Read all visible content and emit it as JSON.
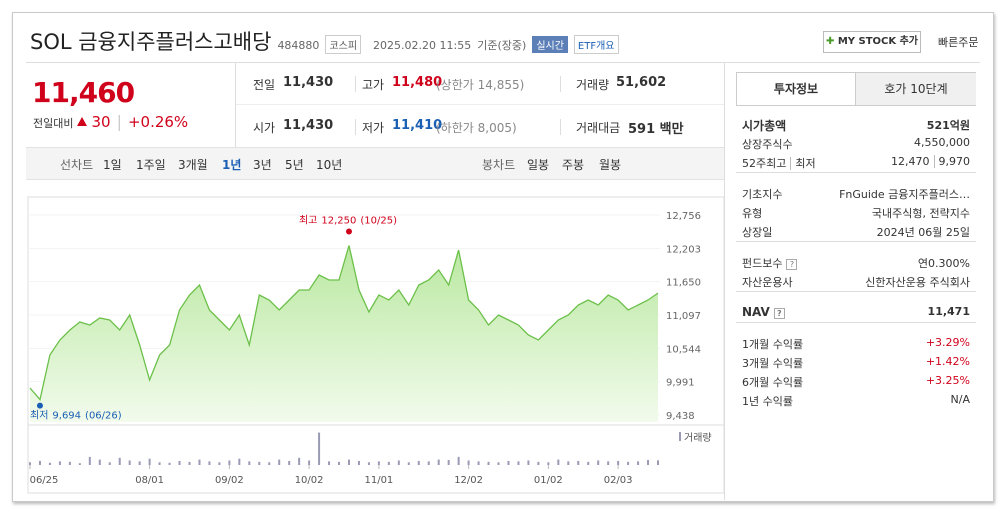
{
  "header": {
    "title": "SOL 금융지주플러스고배당",
    "code": "484880",
    "market": "코스피",
    "timestamp": "2025.02.20 11:55",
    "status": "기준(장중)",
    "realtime": "실시간",
    "etf_overview": "ETF개요",
    "my_stock": "MY STOCK 추가",
    "quick_order": "빠른주문"
  },
  "quote": {
    "price": "11,460",
    "change_label": "전일대비",
    "change": "30",
    "change_pct": "+0.26%"
  },
  "stats": {
    "rows": [
      [
        {
          "label": "전일",
          "value": "11,430"
        },
        {
          "label": "고가",
          "value": "11,480",
          "limit": "(상한가 14,855)"
        },
        {
          "label": "거래량",
          "value": "51,602"
        }
      ],
      [
        {
          "label": "시가",
          "value": "11,430"
        },
        {
          "label": "저가",
          "value": "11,410",
          "limit": "(하한가 8,005)"
        },
        {
          "label": "거래대금",
          "value": "591 백만"
        }
      ]
    ]
  },
  "chart_tabs": {
    "line_label": "선차트",
    "periods": [
      "1일",
      "1주일",
      "3개월",
      "1년",
      "3년",
      "5년",
      "10년"
    ],
    "selected_period": 3,
    "candle_label": "봉차트",
    "candles": [
      "일봉",
      "주봉",
      "월봉"
    ]
  },
  "chart_data": {
    "type": "line",
    "color": "#6cc04a",
    "categories": [
      "06/25",
      null,
      null,
      null,
      null,
      null,
      null,
      null,
      null,
      null,
      null,
      null,
      "08/01",
      null,
      null,
      null,
      null,
      null,
      null,
      null,
      "09/02",
      null,
      null,
      null,
      null,
      null,
      null,
      null,
      "10/02",
      null,
      null,
      null,
      null,
      null,
      null,
      "11/01",
      null,
      null,
      null,
      null,
      null,
      null,
      null,
      null,
      "12/02",
      null,
      null,
      null,
      null,
      null,
      null,
      null,
      "01/02",
      null,
      null,
      null,
      null,
      null,
      null,
      "02/03",
      null,
      null,
      null,
      null
    ],
    "values": [
      9886,
      9694,
      10433,
      10682,
      10848,
      10981,
      10931,
      11047,
      11014,
      10848,
      11097,
      10599,
      10019,
      10433,
      10599,
      11180,
      11429,
      11595,
      11180,
      11014,
      10848,
      11097,
      10599,
      11429,
      11346,
      11180,
      11346,
      11512,
      11512,
      11761,
      11678,
      11678,
      12250,
      11512,
      11147,
      11429,
      11346,
      11512,
      11263,
      11595,
      11678,
      11844,
      11595,
      12175,
      11346,
      11180,
      10931,
      11097,
      11014,
      10931,
      10765,
      10682,
      10848,
      11014,
      11097,
      11263,
      11346,
      11263,
      11429,
      11346,
      11180,
      11263,
      11346,
      11460
    ],
    "ylim": [
      9438,
      12756
    ],
    "yticks": [
      {
        "value": 9438,
        "label": "9,438"
      },
      {
        "value": 9991,
        "label": "9,991"
      },
      {
        "value": 10544,
        "label": "10,544"
      },
      {
        "value": 11097,
        "label": "11,097"
      },
      {
        "value": 11650,
        "label": "11,650"
      },
      {
        "value": 12203,
        "label": "12,203"
      },
      {
        "value": 12756,
        "label": "12,756"
      }
    ],
    "max": {
      "label": "최고",
      "value": 12250,
      "value_label": "12,250",
      "date": "(10/25)",
      "color": "#d0021b"
    },
    "min": {
      "label": "최저",
      "value": 9694,
      "value_label": "9,694",
      "date": "(06/26)",
      "color": "#1a5fb4"
    },
    "volume": {
      "type": "bar",
      "name": "거래량",
      "color": "#9a9ab5",
      "ylim": [
        0,
        400000
      ],
      "values": [
        30000,
        45000,
        25000,
        40000,
        35000,
        20000,
        90000,
        60000,
        30000,
        80000,
        50000,
        40000,
        70000,
        30000,
        25000,
        45000,
        35000,
        60000,
        40000,
        30000,
        50000,
        70000,
        40000,
        35000,
        30000,
        60000,
        45000,
        80000,
        50000,
        360000,
        40000,
        35000,
        60000,
        45000,
        30000,
        40000,
        35000,
        50000,
        30000,
        45000,
        40000,
        60000,
        55000,
        90000,
        50000,
        40000,
        35000,
        30000,
        45000,
        40000,
        50000,
        35000,
        30000,
        60000,
        40000,
        45000,
        35000,
        50000,
        40000,
        45000,
        35000,
        40000,
        55000,
        51602
      ]
    }
  },
  "info": {
    "tabs": [
      "투자정보",
      "호가 10단계"
    ],
    "sections": [
      [
        {
          "label": "시가총액",
          "value": "521억원",
          "bold": true
        },
        {
          "label": "상장주식수",
          "value": "4,550,000"
        },
        {
          "label": "52주최고",
          "label2": "최저",
          "value": "12,470",
          "value2": "9,970"
        }
      ],
      [
        {
          "label": "기초지수",
          "value": "FnGuide 금융지주플러스…"
        },
        {
          "label": "유형",
          "value": "국내주식형, 전략지수"
        },
        {
          "label": "상장일",
          "value": "2024년 06월 25일"
        }
      ],
      [
        {
          "label": "펀드보수",
          "value": "연0.300%",
          "help": true
        },
        {
          "label": "자산운용사",
          "value": "신한자산운용 주식회사"
        }
      ],
      [
        {
          "label": "NAV",
          "value": "11,471",
          "help": true,
          "bold": true
        }
      ],
      [
        {
          "label": "1개월 수익률",
          "value": "+3.29%",
          "up": true
        },
        {
          "label": "3개월 수익률",
          "value": "+1.42%",
          "up": true
        },
        {
          "label": "6개월 수익률",
          "value": "+3.25%",
          "up": true
        },
        {
          "label": "1년 수익률",
          "value": "N/A"
        }
      ]
    ]
  }
}
